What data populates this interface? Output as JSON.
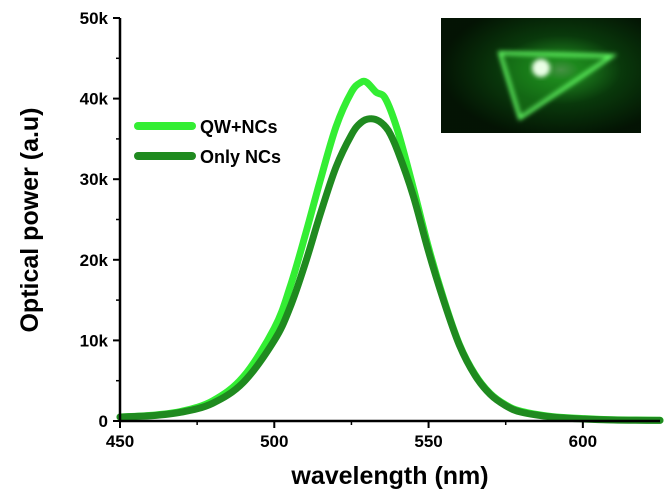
{
  "chart_data": {
    "type": "line",
    "xlabel": "wavelength (nm)",
    "ylabel": "Optical power (a.u)",
    "xlim": [
      450,
      625
    ],
    "ylim": [
      0,
      50000
    ],
    "xticks": [
      450,
      500,
      550,
      600
    ],
    "xtick_labels": [
      "450",
      "500",
      "550",
      "600"
    ],
    "yticks": [
      0,
      10000,
      20000,
      30000,
      40000,
      50000
    ],
    "ytick_labels": [
      "0",
      "10k",
      "20k",
      "30k",
      "40k",
      "50k"
    ],
    "legend_position": "upper-left",
    "inset_image": "green triangular emission photo (top-right)",
    "series": [
      {
        "name": "QW+NCs",
        "color": "#33ee33",
        "x": [
          450,
          460,
          470,
          480,
          490,
          500,
          505,
          510,
          515,
          520,
          525,
          528,
          530,
          533,
          536,
          540,
          545,
          550,
          555,
          560,
          565,
          570,
          575,
          580,
          590,
          600,
          610,
          625
        ],
        "y": [
          500,
          700,
          1200,
          2500,
          5500,
          11500,
          16500,
          23000,
          30000,
          36500,
          40800,
          42000,
          42000,
          40800,
          40000,
          36000,
          29000,
          21500,
          15000,
          9500,
          5800,
          3400,
          2000,
          1200,
          550,
          300,
          150,
          100
        ]
      },
      {
        "name": "Only NCs",
        "color": "#1f8a1f",
        "x": [
          450,
          460,
          470,
          480,
          490,
          500,
          505,
          510,
          515,
          520,
          525,
          528,
          531,
          534,
          537,
          540,
          545,
          550,
          555,
          560,
          565,
          570,
          575,
          580,
          590,
          600,
          610,
          625
        ],
        "y": [
          500,
          650,
          1100,
          2200,
          4800,
          10000,
          14000,
          19500,
          25800,
          31500,
          35500,
          37000,
          37500,
          37200,
          36000,
          33500,
          28000,
          21000,
          14800,
          9400,
          5700,
          3300,
          1900,
          1100,
          500,
          250,
          120,
          80
        ]
      }
    ]
  }
}
